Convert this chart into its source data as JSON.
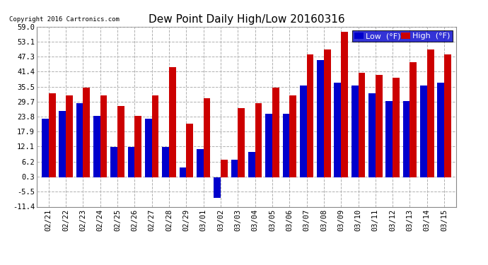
{
  "title": "Dew Point Daily High/Low 20160316",
  "copyright": "Copyright 2016 Cartronics.com",
  "dates": [
    "02/21",
    "02/22",
    "02/23",
    "02/24",
    "02/25",
    "02/26",
    "02/27",
    "02/28",
    "02/29",
    "03/01",
    "03/02",
    "03/03",
    "03/04",
    "03/05",
    "03/06",
    "03/07",
    "03/08",
    "03/09",
    "03/10",
    "03/11",
    "03/12",
    "03/13",
    "03/14",
    "03/15"
  ],
  "low_values": [
    23,
    26,
    29,
    24,
    12,
    12,
    23,
    12,
    4,
    11,
    -8,
    7,
    10,
    25,
    25,
    36,
    46,
    37,
    36,
    33,
    30,
    30,
    36,
    37
  ],
  "high_values": [
    33,
    32,
    35,
    32,
    28,
    24,
    32,
    43,
    21,
    31,
    7,
    27,
    29,
    35,
    32,
    48,
    50,
    57,
    41,
    40,
    39,
    45,
    50,
    48
  ],
  "low_color": "#0000cc",
  "high_color": "#cc0000",
  "bg_color": "#ffffff",
  "grid_color": "#b0b0b0",
  "ylim": [
    -11.4,
    59.0
  ],
  "yticks": [
    -11.4,
    -5.5,
    0.3,
    6.2,
    12.1,
    17.9,
    23.8,
    29.7,
    35.5,
    41.4,
    47.3,
    53.1,
    59.0
  ],
  "bar_width": 0.4,
  "figsize": [
    6.9,
    3.75
  ],
  "dpi": 100
}
